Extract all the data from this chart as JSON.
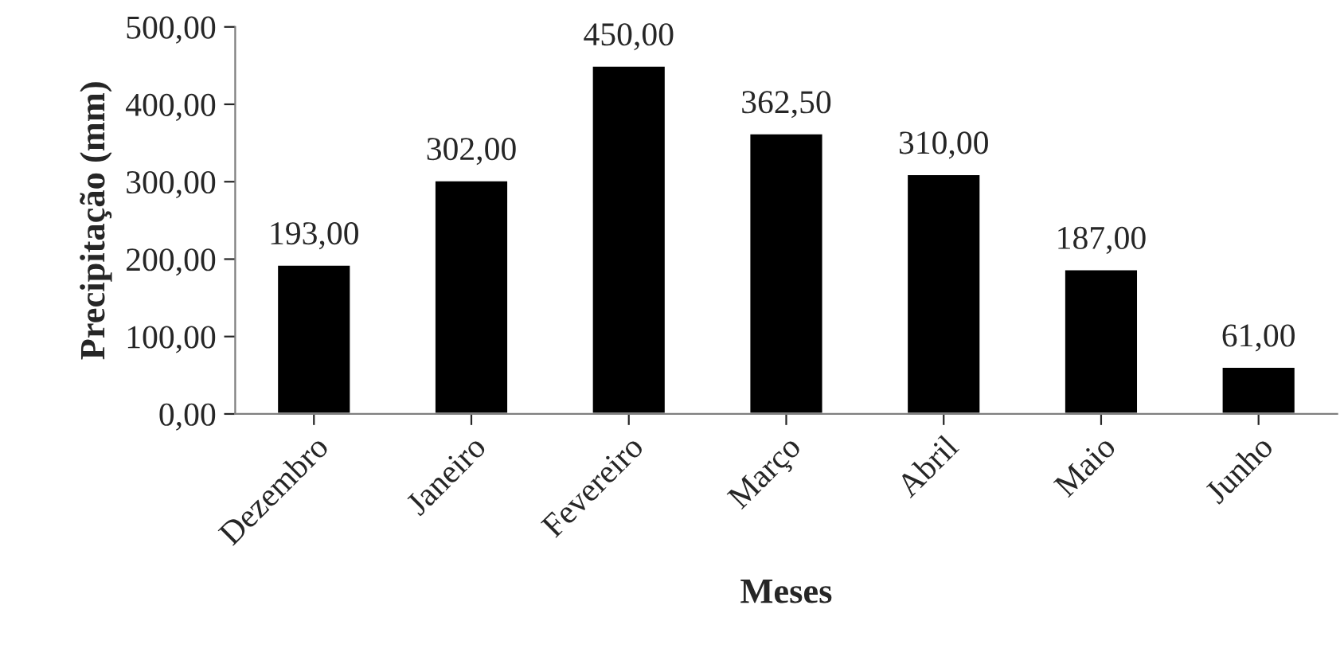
{
  "chart_data": {
    "type": "bar",
    "xlabel": "Meses",
    "ylabel": "Precipitação (mm)",
    "categories": [
      "Dezembro",
      "Janeiro",
      "Fevereiro",
      "Março",
      "Abril",
      "Maio",
      "Junho"
    ],
    "values": [
      193,
      302,
      450,
      362.5,
      310,
      187,
      61
    ],
    "value_labels": [
      "193,00",
      "302,00",
      "450,00",
      "362,50",
      "310,00",
      "187,00",
      "61,00"
    ],
    "color": "#000000",
    "ylim": [
      0,
      500
    ],
    "yticks": [
      {
        "value": 0,
        "label": "0,00"
      },
      {
        "value": 100,
        "label": "100,00"
      },
      {
        "value": 200,
        "label": "200,00"
      },
      {
        "value": 300,
        "label": "300,00"
      },
      {
        "value": 400,
        "label": "400,00"
      },
      {
        "value": 500,
        "label": "500,00"
      }
    ],
    "grid": false,
    "legend": false
  }
}
